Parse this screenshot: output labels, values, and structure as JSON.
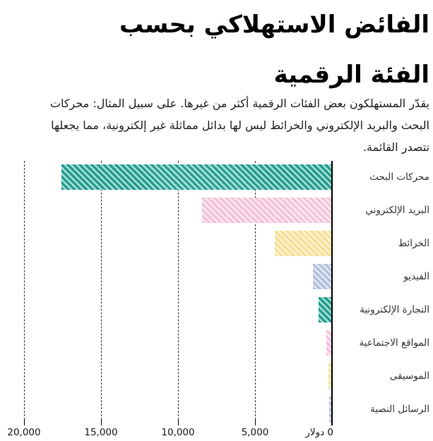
{
  "header": {
    "title_line1": "الفائض الاستهلاكي بحسب",
    "title_line2": "الفئة الرقمية",
    "subtitle": "يقدّر المستهلكون بعض الفئات الرقمية أكثر من غيرها. على سبيل المثال: محركات البحث والبريد الإلكتروني والخرائط ليس لها بدائل مماثلة غير إلكترونية، مما يجعلها تتصدر القائمة."
  },
  "chart_data": {
    "type": "bar",
    "orientation": "horizontal",
    "direction": "rtl",
    "title": "الفائض الاستهلاكي بحسب الفئة الرقمية",
    "xlabel": "دولار",
    "ylabel": "",
    "xlim": [
      0,
      20000
    ],
    "grid": "dashed-vertical",
    "legend": "none",
    "categories": [
      "محركات البحث",
      "البريد الإلكتروني",
      "الخرائط",
      "الفيديو",
      "التجارة الإلكترونية",
      "المواقع الاجتماعية",
      "الموسيقى",
      "الرسائل النصية"
    ],
    "values": [
      17530,
      8414,
      3648,
      1173,
      842,
      322,
      168,
      155
    ],
    "x_ticks": [
      {
        "value": 20000,
        "label": "20,000"
      },
      {
        "value": 15000,
        "label": "15,000"
      },
      {
        "value": 10000,
        "label": "10,000"
      },
      {
        "value": 5000,
        "label": "5,000"
      },
      {
        "value": 0,
        "label": "0 دولار"
      }
    ],
    "palette": [
      {
        "name": "teal-hatch",
        "stripe": "#21998d",
        "fill": "#9edcd4"
      },
      {
        "name": "pink-hatch",
        "stripe": "#f3c1d7",
        "fill": "#fbe7f0"
      },
      {
        "name": "yellow-hatch",
        "stripe": "#f6df97",
        "fill": "#fdf3cf"
      },
      {
        "name": "blue-hatch",
        "stripe": "#b0bed8",
        "fill": "#e0e6f0"
      }
    ],
    "hatch_angle_deg": 45
  }
}
